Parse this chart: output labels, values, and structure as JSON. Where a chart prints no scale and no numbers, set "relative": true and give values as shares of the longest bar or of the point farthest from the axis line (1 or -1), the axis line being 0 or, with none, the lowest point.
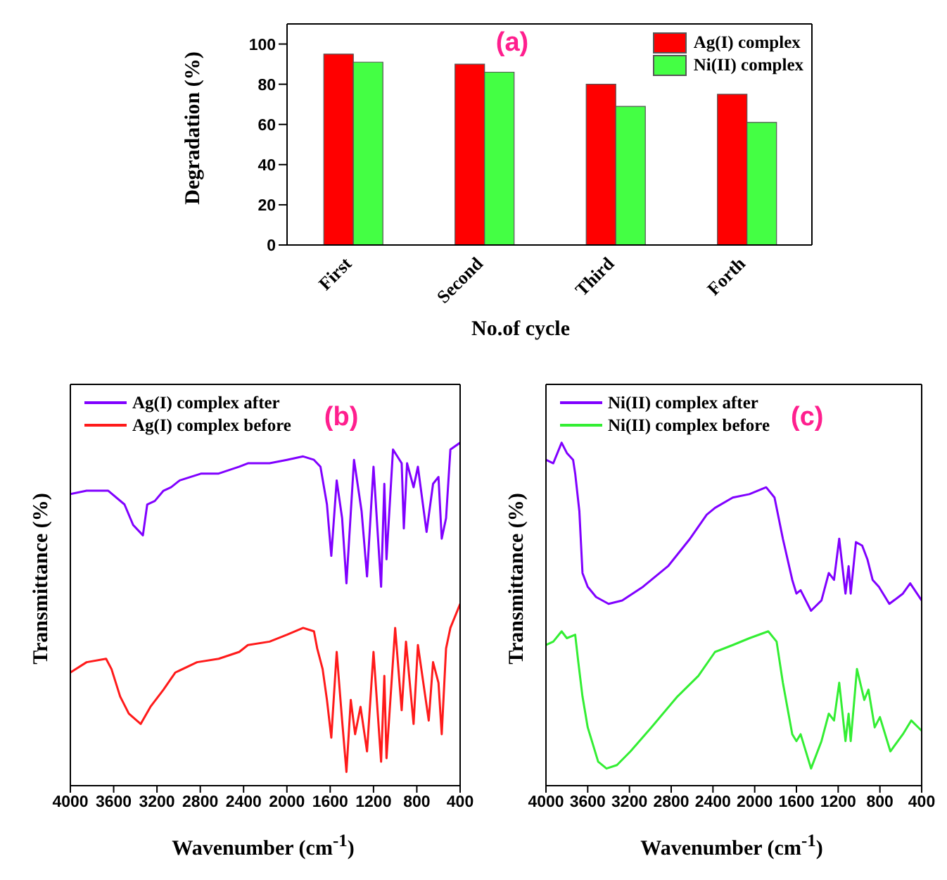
{
  "chart_data": [
    {
      "type": "bar",
      "title": "(a)",
      "xlabel": "No.of cycle",
      "ylabel": "Degradation (%)",
      "categories": [
        "First",
        "Second",
        "Third",
        "Forth"
      ],
      "series": [
        {
          "name": "Ag(I) complex",
          "color": "#ff0000",
          "values": [
            95,
            90,
            80,
            75
          ]
        },
        {
          "name": "Ni(II) complex",
          "color": "#44ff44",
          "values": [
            91,
            86,
            69,
            61
          ]
        }
      ],
      "ylim": [
        0,
        110
      ],
      "yticks": [
        0,
        20,
        40,
        60,
        80,
        100
      ],
      "legend": "top right"
    },
    {
      "type": "line",
      "title": "(b)",
      "xlabel": "Wavenumber (cm$^{-1}$)",
      "ylabel": "Transmittance (%)",
      "relative": true,
      "xlim": [
        4000,
        400
      ],
      "xticks": [
        4000,
        3600,
        3200,
        2800,
        2400,
        2000,
        1600,
        1200,
        800,
        400
      ],
      "tick_labels": "x",
      "legend": "top left",
      "marker": "none",
      "line_style": "solid",
      "series": [
        {
          "name": "Ag(I) complex after",
          "color": "#8000ff",
          "x": [
            4000,
            3850,
            3650,
            3500,
            3420,
            3330,
            3290,
            3220,
            3140,
            3070,
            2990,
            2790,
            2630,
            2440,
            2360,
            2160,
            2000,
            1850,
            1750,
            1690,
            1630,
            1590,
            1540,
            1490,
            1450,
            1380,
            1310,
            1260,
            1200,
            1130,
            1100,
            1080,
            1020,
            940,
            920,
            890,
            830,
            790,
            710,
            650,
            600,
            570,
            530,
            490,
            400
          ],
          "values": [
            0.85,
            0.86,
            0.86,
            0.82,
            0.76,
            0.73,
            0.82,
            0.83,
            0.86,
            0.87,
            0.89,
            0.91,
            0.91,
            0.93,
            0.94,
            0.94,
            0.95,
            0.96,
            0.95,
            0.93,
            0.82,
            0.67,
            0.89,
            0.78,
            0.59,
            0.95,
            0.8,
            0.61,
            0.93,
            0.58,
            0.88,
            0.66,
            0.98,
            0.94,
            0.75,
            0.94,
            0.87,
            0.93,
            0.74,
            0.88,
            0.9,
            0.72,
            0.78,
            0.98,
            1
          ]
        },
        {
          "name": "Ag(I) complex before",
          "color": "#ff1a1a",
          "x": [
            4000,
            3850,
            3670,
            3620,
            3540,
            3460,
            3350,
            3260,
            3140,
            3030,
            2830,
            2630,
            2440,
            2360,
            2160,
            2000,
            1850,
            1750,
            1720,
            1670,
            1630,
            1590,
            1540,
            1490,
            1450,
            1410,
            1370,
            1320,
            1260,
            1200,
            1130,
            1100,
            1080,
            1000,
            940,
            900,
            830,
            790,
            690,
            650,
            600,
            570,
            530,
            490,
            400
          ],
          "values": [
            0.33,
            0.36,
            0.37,
            0.34,
            0.26,
            0.21,
            0.18,
            0.23,
            0.28,
            0.33,
            0.36,
            0.37,
            0.39,
            0.41,
            0.42,
            0.44,
            0.46,
            0.45,
            0.4,
            0.34,
            0.25,
            0.14,
            0.39,
            0.19,
            0.04,
            0.25,
            0.15,
            0.23,
            0.1,
            0.39,
            0.07,
            0.32,
            0.08,
            0.46,
            0.22,
            0.42,
            0.18,
            0.41,
            0.19,
            0.36,
            0.3,
            0.15,
            0.4,
            0.46,
            0.53
          ]
        }
      ]
    },
    {
      "type": "line",
      "title": "(c)",
      "xlabel": "Wavenumber (cm$^{-1}$)",
      "ylabel": "Transmittance (%)",
      "relative": true,
      "xlim": [
        4000,
        400
      ],
      "xticks": [
        4000,
        3600,
        3200,
        2800,
        2400,
        2000,
        1600,
        1200,
        800,
        400
      ],
      "tick_labels": "x",
      "legend": "top left",
      "marker": "none",
      "line_style": "solid",
      "series": [
        {
          "name": "Ni(II) complex after",
          "color": "#8000ff",
          "x": [
            4000,
            3930,
            3850,
            3800,
            3740,
            3720,
            3680,
            3650,
            3600,
            3520,
            3400,
            3270,
            3070,
            2830,
            2620,
            2460,
            2380,
            2210,
            2050,
            1890,
            1810,
            1730,
            1640,
            1600,
            1560,
            1460,
            1360,
            1290,
            1240,
            1190,
            1130,
            1100,
            1080,
            1030,
            970,
            920,
            870,
            810,
            710,
            580,
            510,
            400
          ],
          "values": [
            0.95,
            0.94,
            1,
            0.97,
            0.95,
            0.91,
            0.8,
            0.62,
            0.58,
            0.55,
            0.53,
            0.54,
            0.58,
            0.64,
            0.72,
            0.79,
            0.81,
            0.84,
            0.85,
            0.87,
            0.84,
            0.72,
            0.6,
            0.56,
            0.57,
            0.51,
            0.54,
            0.62,
            0.6,
            0.72,
            0.56,
            0.64,
            0.56,
            0.71,
            0.7,
            0.66,
            0.6,
            0.58,
            0.53,
            0.56,
            0.59,
            0.54
          ]
        },
        {
          "name": "Ni(II) complex before",
          "color": "#33ee33",
          "x": [
            4000,
            3930,
            3850,
            3800,
            3720,
            3690,
            3650,
            3600,
            3500,
            3420,
            3320,
            3190,
            2990,
            2740,
            2540,
            2380,
            2210,
            2050,
            1870,
            1790,
            1730,
            1640,
            1600,
            1560,
            1460,
            1360,
            1290,
            1240,
            1190,
            1130,
            1100,
            1080,
            1020,
            950,
            910,
            850,
            800,
            700,
            580,
            500,
            400
          ],
          "values": [
            0.41,
            0.42,
            0.45,
            0.43,
            0.44,
            0.36,
            0.26,
            0.17,
            0.07,
            0.05,
            0.06,
            0.1,
            0.17,
            0.26,
            0.32,
            0.39,
            0.41,
            0.43,
            0.45,
            0.42,
            0.3,
            0.15,
            0.13,
            0.15,
            0.05,
            0.13,
            0.21,
            0.19,
            0.3,
            0.13,
            0.21,
            0.13,
            0.34,
            0.25,
            0.28,
            0.17,
            0.2,
            0.1,
            0.15,
            0.19,
            0.16
          ]
        }
      ]
    }
  ]
}
